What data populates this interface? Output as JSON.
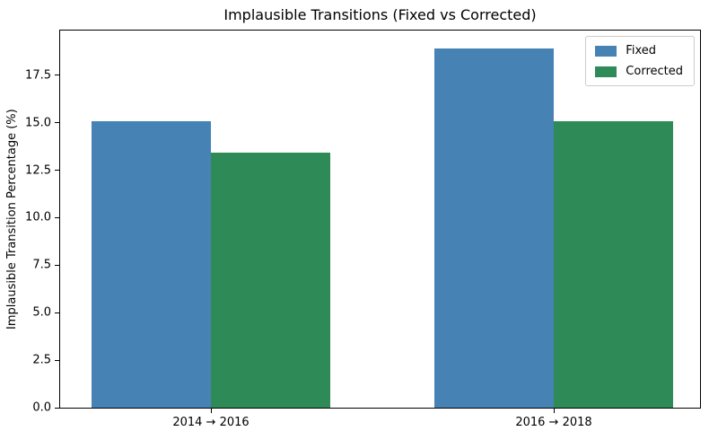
{
  "chart_data": {
    "type": "bar",
    "title": "Implausible Transitions (Fixed vs Corrected)",
    "xlabel": "",
    "ylabel": "Implausible Transition Percentage (%)",
    "categories": [
      "2014 → 2016",
      "2016 → 2018"
    ],
    "series": [
      {
        "name": "Fixed",
        "color": "#4682B4",
        "values": [
          15.1,
          18.9
        ]
      },
      {
        "name": "Corrected",
        "color": "#2E8B57",
        "values": [
          13.4,
          15.1
        ]
      }
    ],
    "ylim": [
      0,
      19.85
    ],
    "ytick_labels": [
      "0.0",
      "2.5",
      "5.0",
      "7.5",
      "10.0",
      "12.5",
      "15.0",
      "17.5"
    ],
    "grid": false,
    "legend_position": "upper right"
  }
}
